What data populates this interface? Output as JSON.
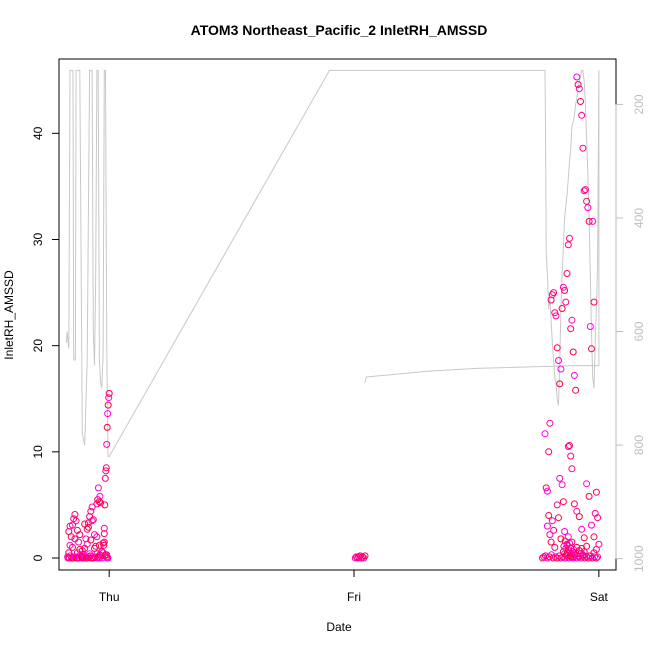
{
  "chart_data": {
    "type": "scatter",
    "title": "ATOM3 Northeast_Pacific_2 InletRH_AMSSD",
    "xlabel": "Date",
    "ylabel": "InletRH_AMSSD",
    "x_ticks": [
      "Thu",
      "Fri",
      "Sat"
    ],
    "ylim": [
      0,
      47
    ],
    "y_ticks": [
      "0",
      "10",
      "20",
      "30",
      "40"
    ],
    "right_axis": {
      "label": "",
      "reversed": true,
      "lim": [
        120,
        1020
      ],
      "ticks": [
        "200",
        "400",
        "600",
        "800",
        "1000"
      ],
      "color": "#bebebe"
    },
    "x_unit": "days since Thu 00:00",
    "xlim": [
      -0.205,
      2.07
    ],
    "series": [
      {
        "name": "",
        "kind": "points",
        "color_low": "#ff00ff",
        "color_high": "#ff0040",
        "x": [
          -0.17,
          -0.165,
          -0.16,
          -0.155,
          -0.15,
          -0.145,
          -0.14,
          -0.135,
          -0.13,
          -0.125,
          -0.12,
          -0.115,
          -0.11,
          -0.105,
          -0.1,
          -0.095,
          -0.09,
          -0.085,
          -0.08,
          -0.075,
          -0.07,
          -0.065,
          -0.06,
          -0.055,
          -0.05,
          -0.045,
          -0.04,
          -0.035,
          -0.03,
          -0.025,
          -0.02,
          -0.015,
          -0.01,
          -0.005,
          -0.168,
          -0.158,
          -0.148,
          -0.138,
          -0.128,
          -0.118,
          -0.108,
          -0.098,
          -0.088,
          -0.078,
          -0.068,
          -0.058,
          -0.048,
          -0.038,
          -0.028,
          -0.018,
          -0.008,
          -0.165,
          -0.16,
          -0.15,
          -0.14,
          -0.13,
          -0.12,
          -0.11,
          -0.1,
          -0.09,
          -0.085,
          -0.08,
          -0.075,
          -0.07,
          -0.06,
          -0.05,
          -0.04,
          -0.03,
          -0.02,
          -0.01,
          -0.163,
          -0.153,
          -0.143,
          -0.133,
          -0.123,
          -0.113,
          -0.103,
          -0.093,
          -0.083,
          -0.073,
          -0.063,
          -0.05,
          -0.047,
          -0.044,
          -0.041,
          -0.038,
          -0.035,
          -0.025,
          -0.022,
          -0.02,
          -0.018,
          -0.016,
          -0.014,
          -0.012,
          -0.01,
          -0.008,
          -0.006,
          -0.004,
          -0.002,
          0.0,
          1.005,
          1.01,
          1.015,
          1.02,
          1.025,
          1.03,
          1.035,
          1.04,
          1.045,
          1.78,
          1.785,
          1.79,
          1.795,
          1.8,
          1.805,
          1.81,
          1.815,
          1.82,
          1.825,
          1.83,
          1.835,
          1.84,
          1.845,
          1.85,
          1.855,
          1.86,
          1.865,
          1.87,
          1.875,
          1.88,
          1.885,
          1.89,
          1.895,
          1.9,
          1.905,
          1.91,
          1.915,
          1.92,
          1.925,
          1.93,
          1.935,
          1.94,
          1.945,
          1.95,
          1.955,
          1.96,
          1.965,
          1.97,
          1.975,
          1.98,
          1.985,
          1.99,
          1.995,
          2.0,
          1.77,
          1.775,
          1.782,
          1.79,
          1.798,
          1.806,
          1.814,
          1.822,
          1.83,
          1.838,
          1.846,
          1.854,
          1.862,
          1.87,
          1.878,
          1.886,
          1.894,
          1.902,
          1.91,
          1.918,
          1.926,
          1.934,
          1.942,
          1.95,
          1.958,
          1.966,
          1.974,
          1.982,
          1.99,
          1.79,
          1.795,
          1.8,
          1.805,
          1.81,
          1.815,
          1.82,
          1.83,
          1.835,
          1.84,
          1.845,
          1.85,
          1.855,
          1.86,
          1.87,
          1.875,
          1.88,
          1.885,
          1.89,
          1.9,
          1.91,
          1.92,
          1.93,
          1.94,
          1.95,
          1.96,
          1.97,
          1.98,
          1.99,
          1.855,
          1.857,
          1.86,
          1.862,
          1.865,
          1.867,
          1.87,
          1.872,
          1.875,
          1.877,
          1.88,
          1.882,
          1.885,
          1.887,
          1.89,
          1.892,
          1.895,
          1.897,
          1.9,
          1.905,
          1.91,
          1.915,
          1.92,
          1.925,
          1.93,
          1.935,
          1.94,
          1.95,
          1.96,
          1.98,
          1.995
        ],
        "y": [
          0.1,
          0.5,
          1.2,
          2.0,
          3.1,
          3.7,
          4.1,
          3.5,
          2.6,
          1.5,
          0.8,
          0.2,
          0.0,
          0.3,
          0.9,
          1.8,
          2.7,
          3.3,
          3.9,
          4.4,
          4.8,
          3.6,
          2.2,
          1.1,
          0.4,
          0.1,
          0.0,
          0.2,
          0.6,
          1.4,
          2.3,
          0.3,
          0.1,
          0.0,
          0.0,
          0.2,
          0.0,
          0.1,
          0.0,
          0.3,
          0.0,
          0.1,
          0.0,
          0.2,
          0.0,
          0.1,
          0.0,
          0.3,
          0.0,
          0.2,
          0.0,
          2.5,
          3.0,
          1.0,
          1.8,
          0.5,
          2.2,
          0.7,
          3.2,
          1.3,
          2.9,
          0.4,
          1.7,
          3.5,
          0.9,
          2.0,
          1.2,
          0.6,
          1.5,
          0.3,
          0.0,
          0.0,
          0.1,
          0.0,
          0.0,
          0.1,
          0.0,
          0.0,
          0.1,
          0.0,
          0.0,
          5.1,
          5.5,
          6.6,
          5.3,
          5.8,
          5.2,
          0.5,
          1.2,
          2.8,
          5.0,
          7.5,
          8.2,
          8.5,
          10.7,
          12.3,
          13.6,
          14.4,
          15.1,
          15.5,
          0.0,
          0.1,
          0.0,
          0.1,
          0.2,
          0.0,
          0.1,
          0.0,
          0.2,
          11.7,
          6.6,
          6.3,
          10.0,
          12.7,
          24.3,
          24.8,
          25.0,
          23.1,
          22.8,
          19.8,
          18.6,
          16.4,
          17.8,
          23.5,
          25.5,
          25.2,
          24.1,
          26.8,
          29.5,
          30.1,
          21.6,
          22.4,
          19.4,
          17.2,
          15.8,
          45.3,
          44.6,
          44.2,
          43.0,
          41.7,
          38.6,
          34.6,
          34.7,
          33.6,
          33.0,
          31.7,
          21.8,
          19.7,
          31.7,
          24.1,
          4.2,
          6.2,
          3.8,
          1.3,
          0.0,
          0.1,
          0.2,
          0.0,
          0.1,
          0.3,
          0.0,
          0.1,
          0.0,
          0.2,
          0.0,
          0.1,
          0.0,
          0.2,
          0.0,
          0.1,
          0.0,
          0.3,
          0.0,
          0.1,
          0.0,
          0.2,
          0.0,
          0.1,
          0.0,
          0.2,
          0.0,
          0.1,
          0.0,
          3.0,
          4.0,
          2.2,
          1.5,
          3.5,
          2.6,
          1.0,
          5.0,
          3.8,
          7.5,
          1.8,
          6.9,
          5.3,
          2.5,
          1.3,
          10.5,
          10.6,
          9.6,
          8.4,
          5.1,
          4.4,
          3.9,
          2.7,
          1.9,
          7.0,
          5.8,
          3.1,
          2.0,
          0.8,
          0.6,
          1.1,
          0.4,
          1.6,
          0.9,
          0.3,
          1.2,
          0.5,
          2.0,
          0.7,
          1.4,
          0.2,
          0.9,
          0.4,
          1.5,
          0.6,
          0.1,
          0.8,
          0.3,
          0.5,
          1.0,
          0.2,
          0.7,
          0.4,
          0.9,
          0.3,
          0.6,
          1.1,
          0.2,
          0.5,
          0.1
        ]
      },
      {
        "name": "",
        "kind": "line",
        "color": "#c8c8c8",
        "axis": "right",
        "x": [
          -0.175,
          -0.172,
          -0.165,
          -0.16,
          -0.155,
          -0.148,
          -0.145,
          -0.138,
          -0.135,
          -0.128,
          -0.12,
          -0.11,
          -0.1,
          -0.09,
          -0.08,
          -0.075,
          -0.07,
          -0.065,
          -0.06,
          -0.055,
          -0.05,
          -0.045,
          -0.04,
          -0.035,
          -0.03,
          -0.025,
          -0.02,
          -0.015,
          -0.01,
          -0.008,
          -0.005,
          -0.003,
          0.0,
          0.9,
          1.0,
          1.005,
          1.01,
          1.015,
          1.02,
          1.025,
          1.03,
          1.035,
          1.04,
          1.045,
          1.05,
          1.78,
          1.782,
          1.785,
          1.79,
          1.795,
          1.8,
          1.805,
          1.81,
          1.815,
          1.82,
          1.825,
          1.83,
          1.835,
          1.84,
          1.845,
          1.85,
          1.855,
          1.86,
          1.865,
          1.87,
          1.875,
          1.88,
          1.885,
          1.89,
          1.895,
          1.9,
          1.905,
          1.91,
          1.915,
          1.92,
          1.925,
          1.93,
          1.935,
          1.94,
          1.945,
          1.95,
          1.955,
          1.96,
          1.965,
          1.97,
          1.975,
          1.98,
          1.985,
          1.99,
          1.995,
          2.0,
          2.0,
          1.9,
          1.5,
          1.3,
          1.05,
          1.045
        ],
        "y": [
          620,
          600,
          630,
          140,
          140,
          140,
          650,
          650,
          140,
          140,
          140,
          780,
          800,
          650,
          140,
          140,
          140,
          600,
          660,
          500,
          140,
          140,
          650,
          690,
          700,
          640,
          140,
          140,
          610,
          700,
          820,
          820,
          820,
          140,
          140,
          140,
          140,
          140,
          140,
          140,
          140,
          140,
          140,
          140,
          140,
          140,
          240,
          460,
          500,
          560,
          540,
          580,
          620,
          650,
          680,
          690,
          720,
          730,
          660,
          560,
          500,
          450,
          400,
          380,
          360,
          330,
          300,
          280,
          240,
          230,
          220,
          200,
          190,
          170,
          160,
          150,
          140,
          140,
          160,
          200,
          260,
          320,
          400,
          500,
          600,
          680,
          700,
          620,
          560,
          480,
          140,
          660,
          660,
          665,
          670,
          680,
          690
        ]
      }
    ],
    "grid": false,
    "legend": "none"
  }
}
